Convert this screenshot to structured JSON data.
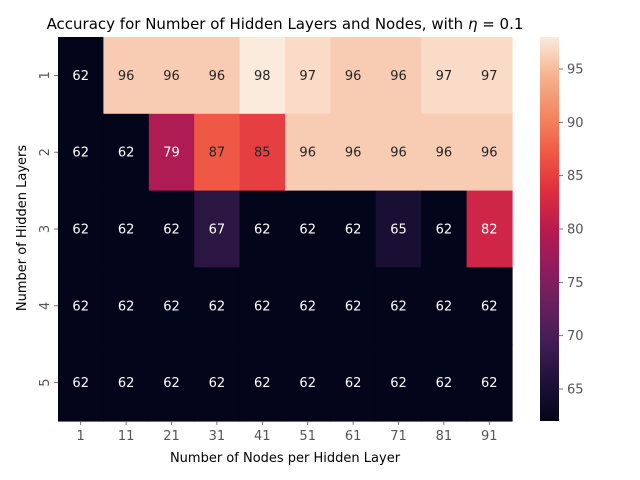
{
  "chart_data": {
    "type": "heatmap",
    "title": "Accuracy for Number of Hidden Layers and Nodes, with η = 0.1",
    "xlabel": "Number of Nodes per Hidden Layer",
    "ylabel": "Number of Hidden Layers",
    "x_categories": [
      "1",
      "11",
      "21",
      "31",
      "41",
      "51",
      "61",
      "71",
      "81",
      "91"
    ],
    "y_categories": [
      "1",
      "2",
      "3",
      "4",
      "5"
    ],
    "values": [
      [
        62,
        96,
        96,
        96,
        98,
        97,
        96,
        96,
        97,
        97
      ],
      [
        62,
        62,
        79,
        87,
        85,
        96,
        96,
        96,
        96,
        96
      ],
      [
        62,
        62,
        62,
        67,
        62,
        62,
        62,
        65,
        62,
        82
      ],
      [
        62,
        62,
        62,
        62,
        62,
        62,
        62,
        62,
        62,
        62
      ],
      [
        62,
        62,
        62,
        62,
        62,
        62,
        62,
        62,
        62,
        62
      ]
    ],
    "colormap": "rocket",
    "colorbar": {
      "range": [
        62,
        98
      ],
      "ticks": [
        "65",
        "70",
        "75",
        "80",
        "85",
        "90",
        "95"
      ]
    }
  }
}
